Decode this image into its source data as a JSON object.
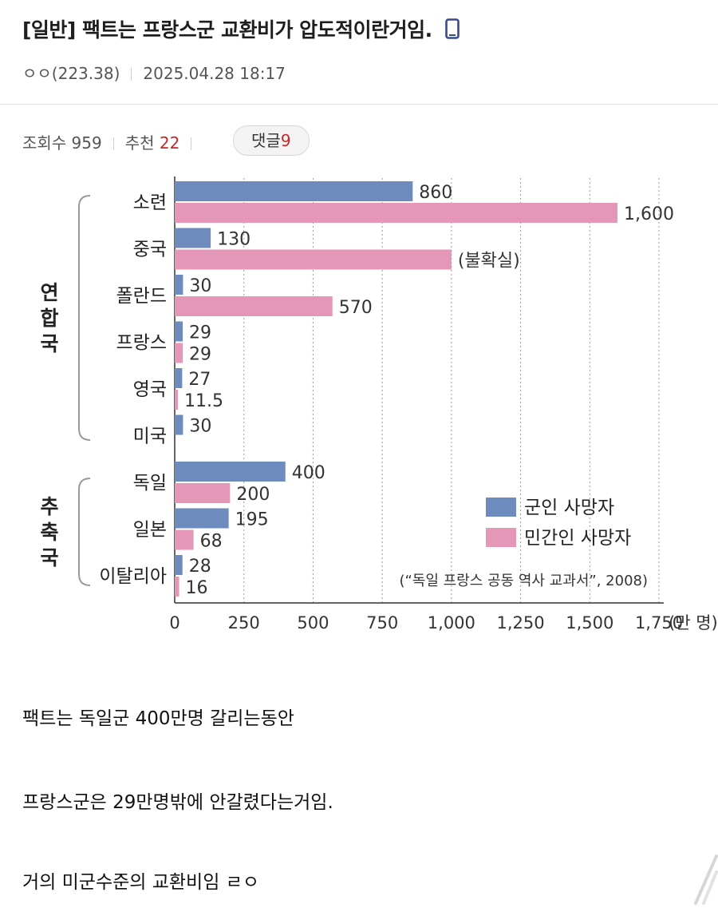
{
  "post": {
    "title": "[일반] 팩트는 프랑스군 교환비가 압도적이란거임.",
    "author": "ㅇㅇ(223.38)",
    "datetime": "2025.04.28 18:17",
    "views_label": "조회수 959",
    "recommend_label": "추천",
    "recommend_count": "22",
    "comment_label": "댓글",
    "comment_count": "9"
  },
  "icons": {
    "title_badge": "mobile-phone-icon",
    "corner": "scroll-corner-icon"
  },
  "colors": {
    "military": "#6e8bbd",
    "civilian": "#e497b6",
    "recommend": "#c62828"
  },
  "chart_data": {
    "type": "bar",
    "orientation": "horizontal",
    "categories": [
      "소련",
      "중국",
      "폴란드",
      "프랑스",
      "영국",
      "미국",
      "독일",
      "일본",
      "이탈리아"
    ],
    "series": [
      {
        "name": "군인 사망자",
        "values": [
          860,
          130,
          30,
          29,
          27,
          30,
          400,
          195,
          28
        ],
        "labels": [
          "860",
          "130",
          "30",
          "29",
          "27",
          "30",
          "400",
          "195",
          "28"
        ]
      },
      {
        "name": "민간인 사망자",
        "values": [
          1600,
          1000,
          570,
          29,
          11.5,
          null,
          200,
          68,
          16
        ],
        "labels": [
          "1,600",
          "(불확실)",
          "570",
          "29",
          "11.5",
          "",
          "200",
          "68",
          "16"
        ]
      }
    ],
    "groups": [
      {
        "label": "연합국",
        "members": [
          "소련",
          "중국",
          "폴란드",
          "프랑스",
          "영국",
          "미국"
        ]
      },
      {
        "label": "추축국",
        "members": [
          "독일",
          "일본",
          "이탈리아"
        ]
      }
    ],
    "x_ticks": [
      "0",
      "250",
      "500",
      "750",
      "1,000",
      "1,250",
      "1,500",
      "1,750"
    ],
    "xunit": "(만 명)",
    "xlim": [
      0,
      1750
    ],
    "grid": "vertical dotted",
    "legend_position": "bottom-right",
    "source": "(“독일 프랑스 공동 역사 교과서”, 2008)"
  },
  "body": {
    "lines": [
      "팩트는 독일군 400만명 갈리는동안",
      "프랑스군은 29만명밖에 안갈렸다는거임.",
      "거의 미군수준의 교환비임 ㄹㅇ"
    ]
  }
}
